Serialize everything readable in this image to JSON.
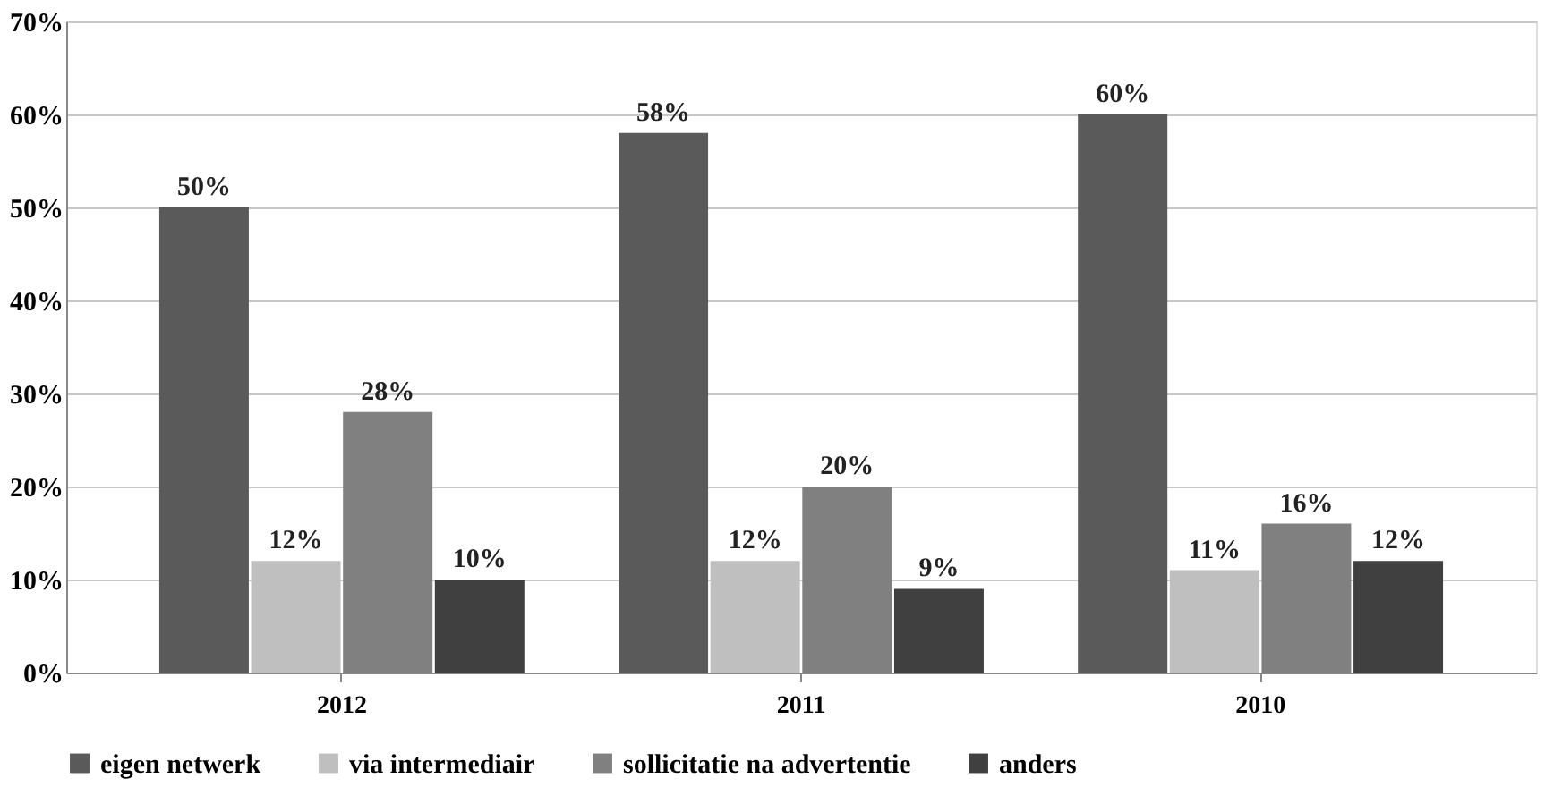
{
  "chart_data": {
    "type": "bar",
    "categories": [
      "2012",
      "2011",
      "2010"
    ],
    "series": [
      {
        "name": "eigen netwerk",
        "color": "#5a5a5a",
        "values": [
          50,
          58,
          60
        ],
        "value_labels": [
          "50%",
          "58%",
          "60%"
        ]
      },
      {
        "name": "via intermediair",
        "color": "#bfbfbf",
        "values": [
          12,
          12,
          11
        ],
        "value_labels": [
          "12%",
          "12%",
          "11%"
        ]
      },
      {
        "name": "sollicitatie na advertentie",
        "color": "#808080",
        "values": [
          28,
          20,
          16
        ],
        "value_labels": [
          "28%",
          "20%",
          "16%"
        ]
      },
      {
        "name": "anders",
        "color": "#404040",
        "values": [
          10,
          9,
          12
        ],
        "value_labels": [
          "10%",
          "9%",
          "12%"
        ]
      }
    ],
    "ylim": [
      0,
      70
    ],
    "yticks": [
      {
        "value": 0,
        "label": "0%"
      },
      {
        "value": 10,
        "label": "10%"
      },
      {
        "value": 20,
        "label": "20%"
      },
      {
        "value": 30,
        "label": "30%"
      },
      {
        "value": 40,
        "label": "40%"
      },
      {
        "value": 50,
        "label": "50%"
      },
      {
        "value": 60,
        "label": "60%"
      },
      {
        "value": 70,
        "label": "70%"
      }
    ],
    "grid": "y",
    "legend": "bottom"
  }
}
